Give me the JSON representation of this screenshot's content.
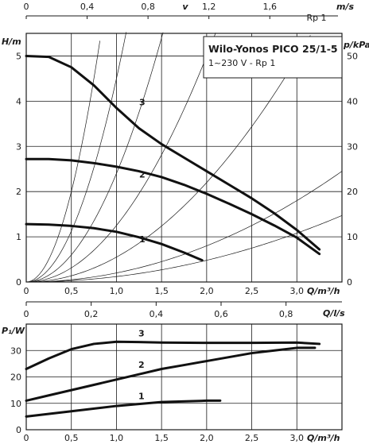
{
  "chart_data": [
    {
      "type": "line",
      "title": "Wilo-Yonos PICO 25/1-5",
      "subtitle": "1~230 V - Rp 1",
      "xlabel": "Q/m³/h",
      "ylabel": "H/m",
      "y2label": "p/kPa",
      "top_axis_label": "v",
      "top_axis_unit": "m/s",
      "top_axis_note": "Rp 1",
      "xlim": [
        0,
        3.5
      ],
      "ylim": [
        0,
        5.5
      ],
      "x_ticks": [
        "0",
        "0,5",
        "1,0",
        "1,5",
        "2,0",
        "2,5",
        "3,0"
      ],
      "y_ticks": [
        "0",
        "1",
        "2",
        "3",
        "4",
        "5"
      ],
      "y2_ticks": [
        "0",
        "10",
        "20",
        "30",
        "40",
        "50"
      ],
      "top_ticks": [
        "0",
        "0,4",
        "0,8",
        "1,2",
        "1,6"
      ],
      "grid": true,
      "series": [
        {
          "label": "3",
          "x": [
            0,
            0.25,
            0.5,
            0.75,
            1.0,
            1.25,
            1.5,
            1.75,
            2.0,
            2.25,
            2.5,
            2.75,
            3.0,
            3.25
          ],
          "y": [
            5.0,
            4.98,
            4.75,
            4.35,
            3.85,
            3.4,
            3.05,
            2.75,
            2.45,
            2.15,
            1.85,
            1.52,
            1.15,
            0.72
          ]
        },
        {
          "label": "2",
          "x": [
            0,
            0.25,
            0.5,
            0.75,
            1.0,
            1.25,
            1.5,
            1.75,
            2.0,
            2.25,
            2.5,
            2.75,
            3.0,
            3.25
          ],
          "y": [
            2.72,
            2.72,
            2.69,
            2.63,
            2.55,
            2.45,
            2.32,
            2.15,
            1.95,
            1.73,
            1.5,
            1.25,
            0.98,
            0.62
          ]
        },
        {
          "label": "1",
          "x": [
            0,
            0.25,
            0.5,
            0.75,
            1.0,
            1.25,
            1.5,
            1.75,
            1.95
          ],
          "y": [
            1.28,
            1.27,
            1.24,
            1.19,
            1.11,
            0.99,
            0.84,
            0.65,
            0.48
          ]
        }
      ]
    },
    {
      "type": "line",
      "xlabel": "Q/m³/h",
      "ylabel": "P₁/W",
      "top_axis_label": "Q/l/s",
      "xlim": [
        0,
        3.5
      ],
      "ylim": [
        0,
        40
      ],
      "x_ticks": [
        "0",
        "0,5",
        "1,0",
        "1,5",
        "2,0",
        "2,5",
        "3,0"
      ],
      "y_ticks": [
        "0",
        "10",
        "20",
        "30"
      ],
      "top_ticks": [
        "0",
        "0,2",
        "0,4",
        "0,6",
        "0,8"
      ],
      "grid": true,
      "series": [
        {
          "label": "3",
          "x": [
            0,
            0.25,
            0.5,
            0.75,
            1.0,
            1.25,
            1.5,
            2.0,
            2.5,
            3.0,
            3.25
          ],
          "y": [
            23,
            27,
            30.5,
            32.5,
            33.3,
            33.2,
            33.0,
            32.9,
            32.9,
            33.0,
            32.5
          ]
        },
        {
          "label": "2",
          "x": [
            0,
            0.25,
            0.5,
            0.75,
            1.0,
            1.25,
            1.5,
            1.75,
            2.0,
            2.25,
            2.5,
            2.75,
            3.0,
            3.2
          ],
          "y": [
            11,
            13,
            15,
            17,
            19,
            21,
            23,
            24.5,
            26,
            27.5,
            29,
            30,
            31,
            31
          ]
        },
        {
          "label": "1",
          "x": [
            0,
            0.5,
            1.0,
            1.5,
            2.0,
            2.15
          ],
          "y": [
            5,
            7,
            9,
            10.5,
            11,
            11
          ]
        }
      ]
    }
  ]
}
